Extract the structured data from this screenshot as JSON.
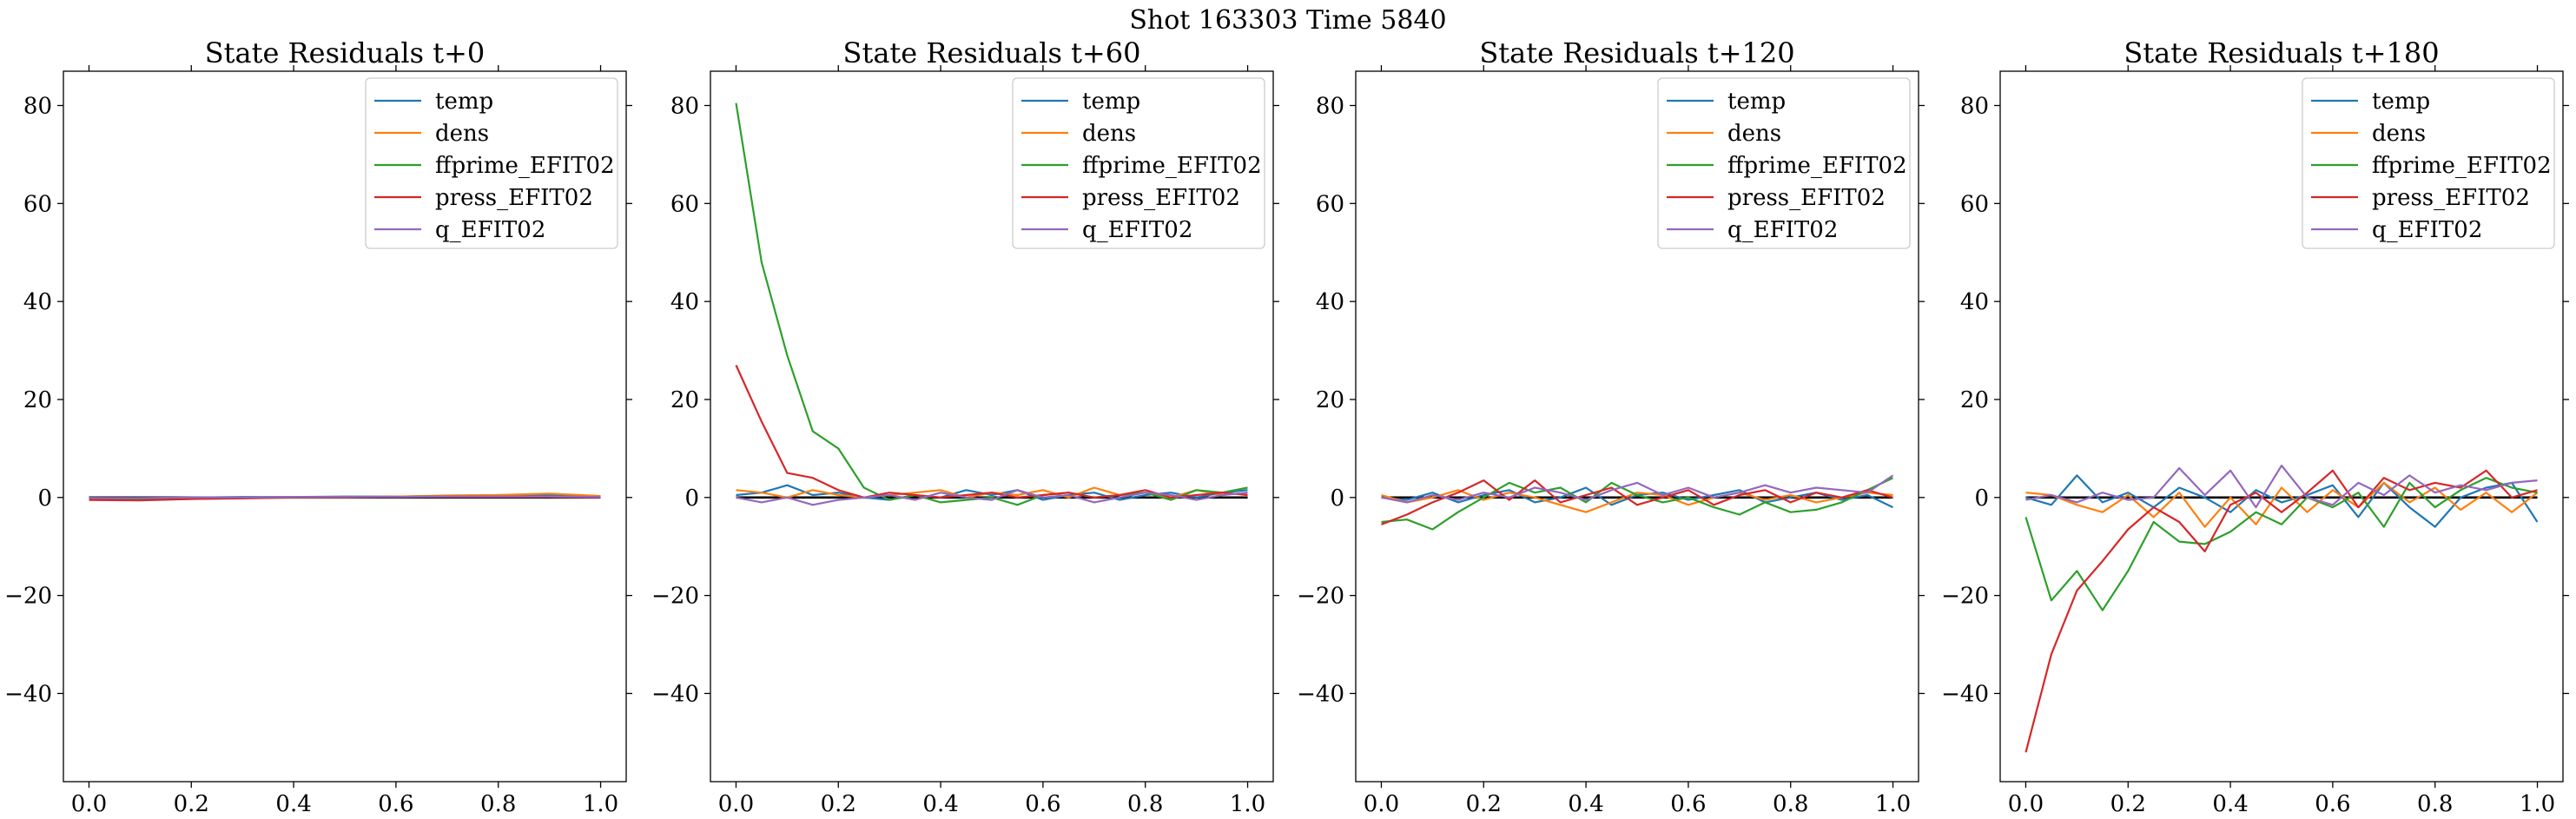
{
  "suptitle": "Shot 163303   Time 5840",
  "colors": {
    "temp": "#1f77b4",
    "dens": "#ff7f0e",
    "ffprime_EFIT02": "#2ca02c",
    "press_EFIT02": "#d62728",
    "q_EFIT02": "#9467bd",
    "zero_line": "#000000"
  },
  "chart_data": [
    {
      "type": "line",
      "title": "State Residuals t+0",
      "xlim": [
        -0.05,
        1.05
      ],
      "ylim": [
        -58,
        87
      ],
      "xticks": [
        "0.0",
        "0.2",
        "0.4",
        "0.6",
        "0.8",
        "1.0"
      ],
      "yticks": [
        "80",
        "60",
        "40",
        "20",
        "0",
        "−20",
        "−40"
      ],
      "legend": "top-right",
      "x": [
        0.0,
        0.1,
        0.2,
        0.3,
        0.4,
        0.5,
        0.6,
        0.7,
        0.8,
        0.9,
        1.0
      ],
      "series": [
        {
          "name": "temp",
          "values": [
            -0.1,
            -0.2,
            0.0,
            0.1,
            0.1,
            0.2,
            0.2,
            0.3,
            0.3,
            0.4,
            0.3
          ]
        },
        {
          "name": "dens",
          "values": [
            -0.3,
            -0.5,
            -0.3,
            -0.1,
            0.0,
            0.1,
            0.2,
            0.4,
            0.5,
            0.8,
            0.3
          ]
        },
        {
          "name": "ffprime_EFIT02",
          "values": [
            -0.4,
            -0.3,
            -0.2,
            -0.1,
            0.0,
            0.1,
            0.1,
            0.2,
            0.2,
            0.2,
            0.1
          ]
        },
        {
          "name": "press_EFIT02",
          "values": [
            -0.5,
            -0.6,
            -0.3,
            -0.2,
            0.0,
            0.0,
            0.1,
            0.1,
            0.1,
            0.1,
            0.0
          ]
        },
        {
          "name": "q_EFIT02",
          "values": [
            -0.1,
            -0.1,
            0.0,
            0.0,
            0.1,
            0.1,
            0.1,
            0.2,
            0.2,
            0.2,
            0.1
          ]
        }
      ]
    },
    {
      "type": "line",
      "title": "State Residuals t+60",
      "xlim": [
        -0.05,
        1.05
      ],
      "ylim": [
        -58,
        87
      ],
      "xticks": [
        "0.0",
        "0.2",
        "0.4",
        "0.6",
        "0.8",
        "1.0"
      ],
      "yticks": [
        "80",
        "60",
        "40",
        "20",
        "0",
        "−20",
        "−40"
      ],
      "legend": "top-right",
      "x": [
        0.0,
        0.05,
        0.1,
        0.15,
        0.2,
        0.25,
        0.3,
        0.35,
        0.4,
        0.45,
        0.5,
        0.55,
        0.6,
        0.65,
        0.7,
        0.75,
        0.8,
        0.85,
        0.9,
        0.95,
        1.0
      ],
      "series": [
        {
          "name": "temp",
          "values": [
            0.5,
            1.0,
            2.5,
            0.5,
            1.0,
            0.0,
            -0.5,
            0.5,
            0.0,
            1.5,
            0.5,
            1.5,
            -0.5,
            0.5,
            1.0,
            -0.5,
            0.5,
            1.0,
            0.0,
            1.0,
            1.5
          ]
        },
        {
          "name": "dens",
          "values": [
            1.5,
            1.0,
            0.0,
            1.5,
            0.5,
            0.0,
            0.5,
            1.0,
            1.5,
            0.0,
            1.0,
            0.5,
            1.5,
            0.0,
            2.0,
            0.5,
            1.0,
            0.0,
            1.5,
            0.5,
            1.0
          ]
        },
        {
          "name": "ffprime_EFIT02",
          "values": [
            80.5,
            48.0,
            29.0,
            13.5,
            10.0,
            2.0,
            -0.5,
            0.5,
            -1.0,
            -0.5,
            0.0,
            -1.5,
            0.5,
            1.0,
            0.0,
            0.5,
            1.0,
            -0.5,
            1.5,
            1.0,
            2.0
          ]
        },
        {
          "name": "press_EFIT02",
          "values": [
            27.0,
            15.5,
            5.0,
            4.0,
            1.5,
            0.0,
            1.0,
            0.5,
            0.0,
            0.5,
            1.0,
            0.0,
            0.5,
            1.0,
            0.0,
            0.5,
            1.5,
            0.0,
            0.5,
            1.0,
            0.5
          ]
        },
        {
          "name": "q_EFIT02",
          "values": [
            0.0,
            -1.0,
            0.0,
            -1.5,
            -0.5,
            0.0,
            0.5,
            -0.5,
            1.0,
            0.0,
            -0.5,
            1.5,
            0.0,
            0.5,
            -1.0,
            0.0,
            1.0,
            0.5,
            -0.5,
            0.5,
            1.0
          ]
        }
      ]
    },
    {
      "type": "line",
      "title": "State Residuals t+120",
      "xlim": [
        -0.05,
        1.05
      ],
      "ylim": [
        -58,
        87
      ],
      "xticks": [
        "0.0",
        "0.2",
        "0.4",
        "0.6",
        "0.8",
        "1.0"
      ],
      "yticks": [
        "80",
        "60",
        "40",
        "20",
        "0",
        "−20",
        "−40"
      ],
      "legend": "top-right",
      "x": [
        0.0,
        0.05,
        0.1,
        0.15,
        0.2,
        0.25,
        0.3,
        0.35,
        0.4,
        0.45,
        0.5,
        0.55,
        0.6,
        0.65,
        0.7,
        0.75,
        0.8,
        0.85,
        0.9,
        0.95,
        1.0
      ],
      "series": [
        {
          "name": "temp",
          "values": [
            0.0,
            -0.5,
            1.0,
            -1.0,
            0.5,
            1.5,
            -1.0,
            0.0,
            2.0,
            -1.5,
            0.5,
            1.0,
            -0.5,
            0.5,
            1.5,
            -1.0,
            0.0,
            1.0,
            -0.5,
            0.5,
            -2.0
          ]
        },
        {
          "name": "dens",
          "values": [
            0.5,
            -1.0,
            0.0,
            1.5,
            -0.5,
            1.0,
            0.0,
            -1.5,
            -3.0,
            -1.0,
            1.0,
            0.5,
            -1.5,
            0.0,
            1.0,
            -0.5,
            0.5,
            -1.0,
            0.0,
            1.0,
            0.5
          ]
        },
        {
          "name": "ffprime_EFIT02",
          "values": [
            -5.0,
            -4.5,
            -6.5,
            -3.0,
            0.0,
            3.0,
            1.0,
            2.0,
            -1.0,
            3.0,
            0.5,
            -1.0,
            0.0,
            -2.0,
            -3.5,
            -1.0,
            -3.0,
            -2.5,
            -1.0,
            1.5,
            4.0
          ]
        },
        {
          "name": "press_EFIT02",
          "values": [
            -5.5,
            -3.5,
            -1.0,
            1.0,
            3.5,
            -0.5,
            3.5,
            -1.0,
            0.5,
            2.0,
            -1.5,
            0.0,
            1.5,
            -1.5,
            0.5,
            1.5,
            -1.0,
            1.0,
            0.0,
            1.5,
            0.0
          ]
        },
        {
          "name": "q_EFIT02",
          "values": [
            0.0,
            -1.0,
            0.5,
            -0.5,
            1.0,
            0.0,
            2.0,
            1.0,
            -0.5,
            1.5,
            3.0,
            0.5,
            2.0,
            0.0,
            1.0,
            2.5,
            1.0,
            2.0,
            1.5,
            1.0,
            4.5
          ]
        }
      ]
    },
    {
      "type": "line",
      "title": "State Residuals t+180",
      "xlim": [
        -0.05,
        1.05
      ],
      "ylim": [
        -58,
        87
      ],
      "xticks": [
        "0.0",
        "0.2",
        "0.4",
        "0.6",
        "0.8",
        "1.0"
      ],
      "yticks": [
        "80",
        "60",
        "40",
        "20",
        "0",
        "−20",
        "−40"
      ],
      "legend": "top-right",
      "x": [
        0.0,
        0.05,
        0.1,
        0.15,
        0.2,
        0.25,
        0.3,
        0.35,
        0.4,
        0.45,
        0.5,
        0.55,
        0.6,
        0.65,
        0.7,
        0.75,
        0.8,
        0.85,
        0.9,
        0.95,
        1.0
      ],
      "series": [
        {
          "name": "temp",
          "values": [
            0.0,
            -1.5,
            4.5,
            -1.0,
            1.0,
            -2.0,
            2.0,
            0.0,
            -3.0,
            1.5,
            -1.0,
            0.5,
            2.5,
            -4.0,
            3.0,
            -2.0,
            -6.0,
            0.0,
            2.0,
            3.0,
            -5.0
          ]
        },
        {
          "name": "dens",
          "values": [
            1.0,
            0.5,
            -1.5,
            -3.0,
            0.5,
            -4.0,
            1.0,
            -6.0,
            0.0,
            -5.5,
            2.0,
            -3.0,
            1.5,
            -2.0,
            3.0,
            -1.0,
            2.0,
            -2.5,
            1.0,
            -3.0,
            1.0
          ]
        },
        {
          "name": "ffprime_EFIT02",
          "values": [
            -4.0,
            -21.0,
            -15.0,
            -23.0,
            -15.0,
            -5.0,
            -9.0,
            -9.5,
            -7.0,
            -3.0,
            -5.5,
            0.0,
            -2.0,
            1.0,
            -6.0,
            3.0,
            -2.0,
            1.5,
            4.0,
            2.0,
            1.0
          ]
        },
        {
          "name": "press_EFIT02",
          "values": [
            -52.0,
            -32.0,
            -19.0,
            -13.0,
            -6.5,
            -2.0,
            -5.0,
            -11.0,
            -1.5,
            1.0,
            -3.0,
            1.0,
            5.5,
            -2.0,
            4.0,
            1.5,
            3.0,
            2.0,
            5.5,
            0.0,
            1.5
          ]
        },
        {
          "name": "q_EFIT02",
          "values": [
            -0.5,
            0.5,
            -1.0,
            1.0,
            -0.5,
            0.0,
            6.0,
            0.5,
            5.5,
            -2.0,
            6.5,
            0.0,
            -1.5,
            3.0,
            0.5,
            4.5,
            1.0,
            2.5,
            1.5,
            3.0,
            3.5
          ]
        }
      ]
    }
  ]
}
